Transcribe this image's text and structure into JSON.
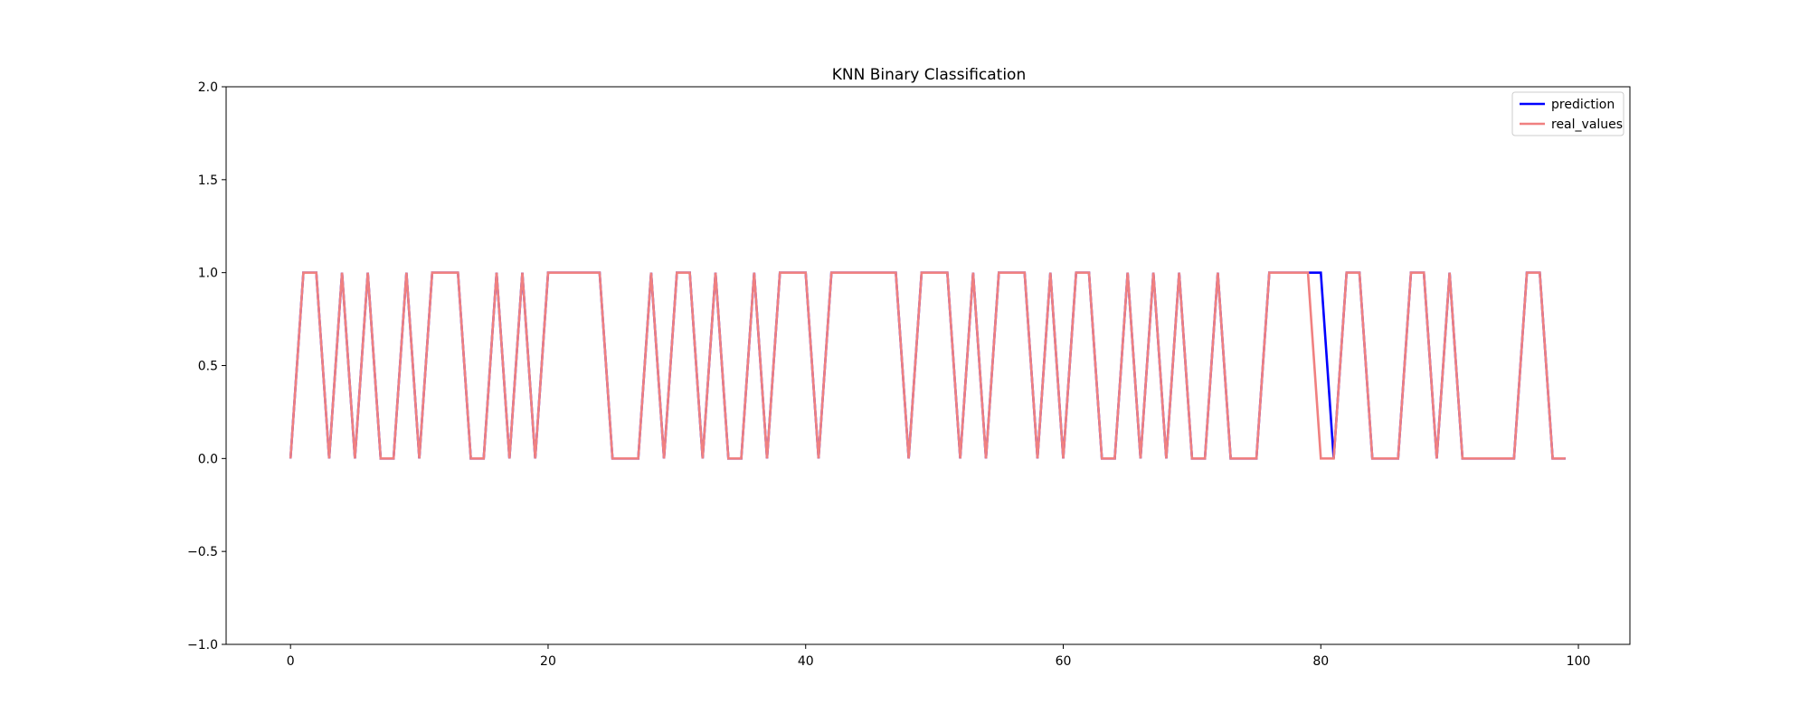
{
  "chart_data": {
    "type": "line",
    "title": "KNN Binary Classification",
    "xlabel": "",
    "ylabel": "",
    "xlim": [
      -5,
      104
    ],
    "ylim": [
      -1.0,
      2.0
    ],
    "xticks": [
      0,
      20,
      40,
      60,
      80,
      100
    ],
    "yticks": [
      -1.0,
      -0.5,
      0.0,
      0.5,
      1.0,
      1.5,
      2.0
    ],
    "ytick_labels": [
      "−1.0",
      "−0.5",
      "0.0",
      "0.5",
      "1.0",
      "1.5",
      "2.0"
    ],
    "grid": false,
    "legend_position": "top-right",
    "series": [
      {
        "name": "prediction",
        "color": "#0000ff",
        "values": [
          0,
          1,
          1,
          0,
          1,
          0,
          1,
          0,
          0,
          1,
          0,
          1,
          1,
          1,
          0,
          0,
          1,
          0,
          1,
          0,
          1,
          1,
          1,
          1,
          1,
          0,
          0,
          0,
          1,
          0,
          1,
          1,
          0,
          1,
          0,
          0,
          1,
          0,
          1,
          1,
          1,
          0,
          1,
          1,
          1,
          1,
          1,
          1,
          0,
          1,
          1,
          1,
          0,
          1,
          0,
          1,
          1,
          1,
          0,
          1,
          0,
          1,
          1,
          0,
          0,
          1,
          0,
          1,
          0,
          1,
          0,
          0,
          1,
          0,
          0,
          0,
          1,
          1,
          1,
          1,
          1,
          0,
          1,
          1,
          0,
          0,
          0,
          1,
          1,
          0,
          1,
          0,
          0,
          0,
          0,
          0,
          1,
          1,
          0,
          0
        ]
      },
      {
        "name": "real_values",
        "color": "#f08080",
        "values": [
          0,
          1,
          1,
          0,
          1,
          0,
          1,
          0,
          0,
          1,
          0,
          1,
          1,
          1,
          0,
          0,
          1,
          0,
          1,
          0,
          1,
          1,
          1,
          1,
          1,
          0,
          0,
          0,
          1,
          0,
          1,
          1,
          0,
          1,
          0,
          0,
          1,
          0,
          1,
          1,
          1,
          0,
          1,
          1,
          1,
          1,
          1,
          1,
          0,
          1,
          1,
          1,
          0,
          1,
          0,
          1,
          1,
          1,
          0,
          1,
          0,
          1,
          1,
          0,
          0,
          1,
          0,
          1,
          0,
          1,
          0,
          0,
          1,
          0,
          0,
          0,
          1,
          1,
          1,
          1,
          0,
          0,
          1,
          1,
          0,
          0,
          0,
          1,
          1,
          0,
          1,
          0,
          0,
          0,
          0,
          0,
          1,
          1,
          0,
          0
        ]
      }
    ]
  }
}
